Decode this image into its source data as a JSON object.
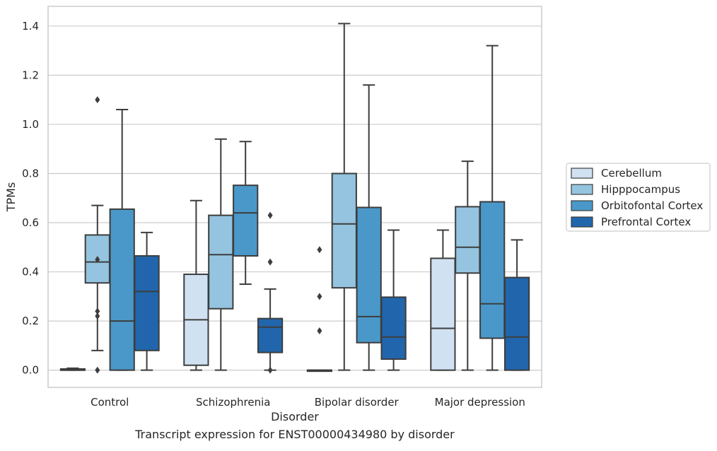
{
  "caption": "Transcript expression for ENST00000434980 by disorder",
  "chart_data": {
    "type": "box",
    "title": "",
    "xlabel": "Disorder",
    "ylabel": "TPMs",
    "ylim": [
      -0.07,
      1.48
    ],
    "yticks": [
      0.0,
      0.2,
      0.4,
      0.6,
      0.8,
      1.0,
      1.2,
      1.4
    ],
    "ytick_labels": [
      "0.0",
      "0.2",
      "0.4",
      "0.6",
      "0.8",
      "1.0",
      "1.2",
      "1.4"
    ],
    "grid": "horizontal",
    "legend_position": "right",
    "categories": [
      "Control",
      "Schizophrenia",
      "Bipolar disorder",
      "Major depression"
    ],
    "series": [
      {
        "name": "Cerebellum",
        "color": "#d0e1f2",
        "boxes": [
          {
            "whislo": 0.0,
            "q1": 0.0,
            "med": 0.0,
            "q3": 0.005,
            "whishi": 0.008,
            "fliers": []
          },
          {
            "whislo": 0.0,
            "q1": 0.02,
            "med": 0.205,
            "q3": 0.39,
            "whishi": 0.69,
            "fliers": []
          },
          {
            "whislo": 0.0,
            "q1": 0.0,
            "med": 0.0,
            "q3": 0.0,
            "whishi": 0.0,
            "fliers": [
              0.16,
              0.3,
              0.49
            ]
          },
          {
            "whislo": 0.0,
            "q1": 0.0,
            "med": 0.17,
            "q3": 0.455,
            "whishi": 0.57,
            "fliers": []
          }
        ]
      },
      {
        "name": "Hipppocampus",
        "color": "#94c4df",
        "boxes": [
          {
            "whislo": 0.08,
            "q1": 0.355,
            "med": 0.44,
            "q3": 0.55,
            "whishi": 0.67,
            "fliers": [
              0.0,
              0.22,
              0.24,
              0.45,
              1.1
            ]
          },
          {
            "whislo": 0.0,
            "q1": 0.25,
            "med": 0.47,
            "q3": 0.63,
            "whishi": 0.94,
            "fliers": []
          },
          {
            "whislo": 0.0,
            "q1": 0.335,
            "med": 0.595,
            "q3": 0.8,
            "whishi": 1.41,
            "fliers": []
          },
          {
            "whislo": 0.0,
            "q1": 0.395,
            "med": 0.5,
            "q3": 0.665,
            "whishi": 0.85,
            "fliers": []
          }
        ]
      },
      {
        "name": "Orbitofontal Cortex",
        "color": "#4a98c9",
        "boxes": [
          {
            "whislo": 0.0,
            "q1": 0.0,
            "med": 0.2,
            "q3": 0.655,
            "whishi": 1.06,
            "fliers": []
          },
          {
            "whislo": 0.35,
            "q1": 0.465,
            "med": 0.64,
            "q3": 0.752,
            "whishi": 0.93,
            "fliers": []
          },
          {
            "whislo": 0.0,
            "q1": 0.112,
            "med": 0.218,
            "q3": 0.662,
            "whishi": 1.16,
            "fliers": []
          },
          {
            "whislo": 0.0,
            "q1": 0.13,
            "med": 0.27,
            "q3": 0.685,
            "whishi": 1.32,
            "fliers": []
          }
        ]
      },
      {
        "name": "Prefrontal Cortex",
        "color": "#2166ac",
        "boxes": [
          {
            "whislo": 0.0,
            "q1": 0.08,
            "med": 0.32,
            "q3": 0.465,
            "whishi": 0.56,
            "fliers": []
          },
          {
            "whislo": 0.0,
            "q1": 0.072,
            "med": 0.175,
            "q3": 0.21,
            "whishi": 0.33,
            "fliers": [
              0.0,
              0.44,
              0.63
            ]
          },
          {
            "whislo": 0.0,
            "q1": 0.045,
            "med": 0.135,
            "q3": 0.297,
            "whishi": 0.57,
            "fliers": []
          },
          {
            "whislo": 0.0,
            "q1": 0.0,
            "med": 0.135,
            "q3": 0.377,
            "whishi": 0.53,
            "fliers": []
          }
        ]
      }
    ]
  }
}
